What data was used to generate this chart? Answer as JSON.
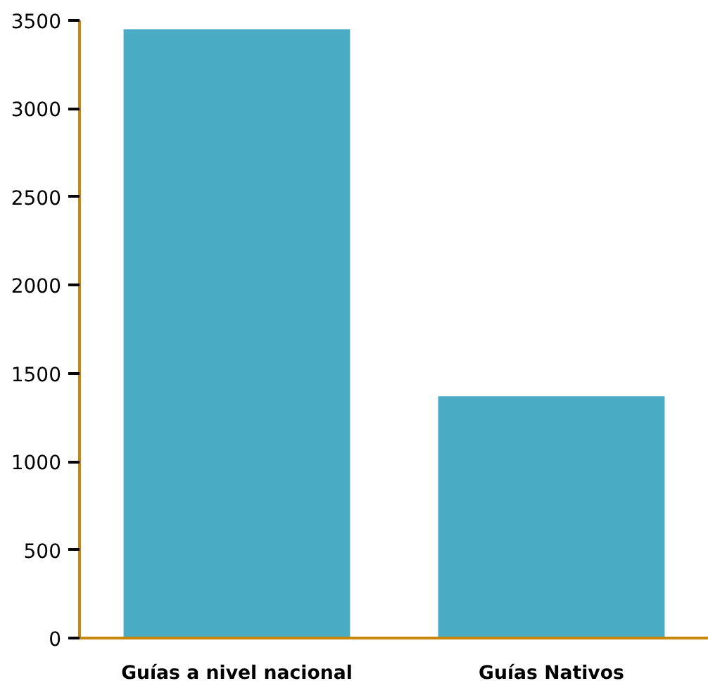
{
  "chart_data": {
    "type": "bar",
    "categories": [
      "Guías a nivel nacional",
      "Guías Nativos"
    ],
    "values": [
      3450,
      1370
    ],
    "color": "#4aabc4",
    "ylim": [
      0,
      3500
    ],
    "yticks": [
      0,
      500,
      1000,
      1500,
      2000,
      2500,
      3000,
      3500
    ],
    "grid": false
  }
}
